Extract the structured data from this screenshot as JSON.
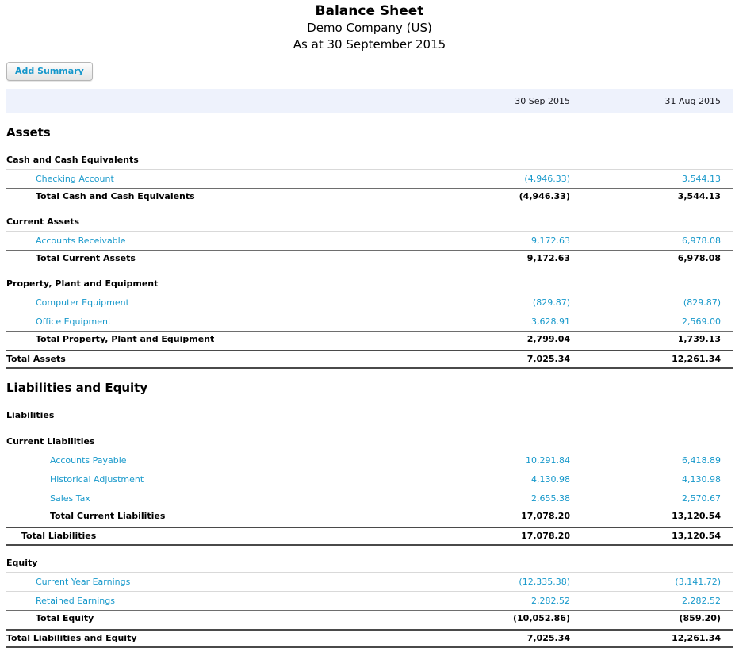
{
  "report": {
    "title": "Balance Sheet",
    "company": "Demo Company (US)",
    "date_line": "As at 30 September 2015",
    "add_summary_label": "Add Summary",
    "columns": [
      "30 Sep 2015",
      "31 Aug 2015"
    ],
    "colors": {
      "link_blue": "#1899cb",
      "header_band_bg": "#eef2fc",
      "header_band_border": "#aeb6c6",
      "row_divider": "#d9d9d9",
      "total_divider": "#6e6e6e",
      "grand_total_divider": "#4a4a4a"
    },
    "rows": [
      {
        "type": "heading",
        "label": "Assets",
        "indent": 0
      },
      {
        "type": "subheading",
        "label": "Cash and Cash Equivalents",
        "indent": 1
      },
      {
        "type": "account",
        "label": "Checking Account",
        "indent": 2,
        "values": [
          "(4,946.33)",
          "3,544.13"
        ]
      },
      {
        "type": "total",
        "label": "Total Cash and Cash Equivalents",
        "indent": 2,
        "values": [
          "(4,946.33)",
          "3,544.13"
        ]
      },
      {
        "type": "subheading",
        "label": "Current Assets",
        "indent": 1
      },
      {
        "type": "account",
        "label": "Accounts Receivable",
        "indent": 2,
        "values": [
          "9,172.63",
          "6,978.08"
        ]
      },
      {
        "type": "total",
        "label": "Total Current Assets",
        "indent": 2,
        "values": [
          "9,172.63",
          "6,978.08"
        ]
      },
      {
        "type": "subheading",
        "label": "Property, Plant and Equipment",
        "indent": 1
      },
      {
        "type": "account",
        "label": "Computer Equipment",
        "indent": 2,
        "values": [
          "(829.87)",
          "(829.87)"
        ]
      },
      {
        "type": "account",
        "label": "Office Equipment",
        "indent": 2,
        "values": [
          "3,628.91",
          "2,569.00"
        ]
      },
      {
        "type": "total",
        "label": "Total Property, Plant and Equipment",
        "indent": 2,
        "values": [
          "2,799.04",
          "1,739.13"
        ]
      },
      {
        "type": "grandtotal",
        "label": "Total Assets",
        "indent": 0,
        "values": [
          "7,025.34",
          "12,261.34"
        ]
      },
      {
        "type": "heading",
        "label": "Liabilities and Equity",
        "indent": 0
      },
      {
        "type": "subheading",
        "label": "Liabilities",
        "indent": 1
      },
      {
        "type": "subheading",
        "label": "Current Liabilities",
        "indent": 2
      },
      {
        "type": "account",
        "label": "Accounts Payable",
        "indent": 3,
        "values": [
          "10,291.84",
          "6,418.89"
        ]
      },
      {
        "type": "account",
        "label": "Historical Adjustment",
        "indent": 3,
        "values": [
          "4,130.98",
          "4,130.98"
        ]
      },
      {
        "type": "account",
        "label": "Sales Tax",
        "indent": 3,
        "values": [
          "2,655.38",
          "2,570.67"
        ]
      },
      {
        "type": "total",
        "label": "Total Current Liabilities",
        "indent": 3,
        "values": [
          "17,078.20",
          "13,120.54"
        ]
      },
      {
        "type": "grandtotal",
        "label": "Total Liabilities",
        "indent": 1,
        "values": [
          "17,078.20",
          "13,120.54"
        ]
      },
      {
        "type": "subheading",
        "label": "Equity",
        "indent": 1
      },
      {
        "type": "account",
        "label": "Current Year Earnings",
        "indent": 2,
        "values": [
          "(12,335.38)",
          "(3,141.72)"
        ]
      },
      {
        "type": "account",
        "label": "Retained Earnings",
        "indent": 2,
        "values": [
          "2,282.52",
          "2,282.52"
        ]
      },
      {
        "type": "total",
        "label": "Total Equity",
        "indent": 2,
        "values": [
          "(10,052.86)",
          "(859.20)"
        ]
      },
      {
        "type": "grandtotal",
        "label": "Total Liabilities and Equity",
        "indent": 0,
        "values": [
          "7,025.34",
          "12,261.34"
        ]
      }
    ]
  }
}
